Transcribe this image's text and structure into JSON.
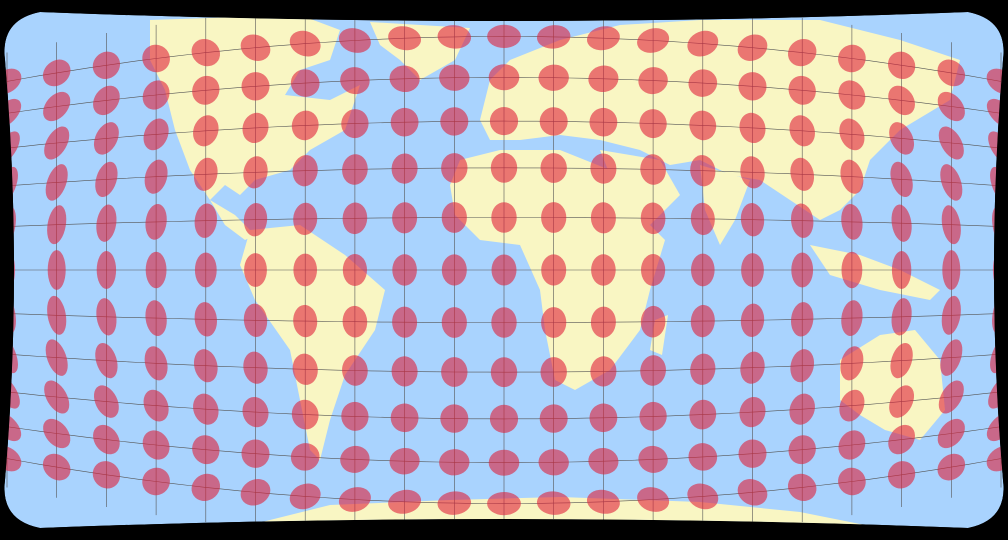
{
  "map": {
    "colors": {
      "background": "#000000",
      "ocean": "#a9d3fe",
      "land": "#f9f6c3",
      "graticule": "#555555",
      "indicatrix_fill": "#e0213a",
      "indicatrix_opacity": 0.6
    },
    "graticule": {
      "lon_step_deg": 18,
      "lat_step_deg": 15
    },
    "indicatrices": {
      "lon_step_deg": 18,
      "lat_step_deg": 15,
      "lat_max_deg": 75
    }
  }
}
